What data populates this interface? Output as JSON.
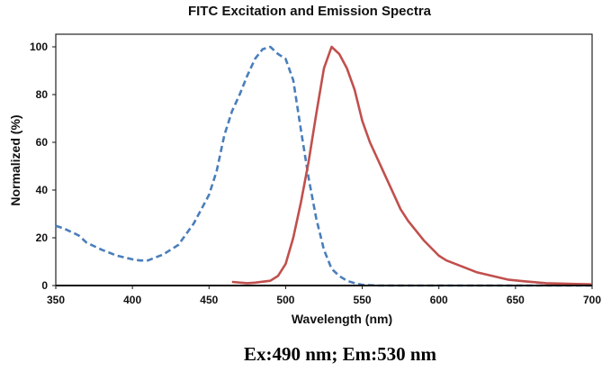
{
  "chart_data": {
    "type": "line",
    "title": "FITC Excitation and Emission Spectra",
    "xlabel": "Wavelength (nm)",
    "ylabel": "Normalized (%)",
    "xlim": [
      350,
      700
    ],
    "ylim": [
      0,
      100
    ],
    "xticks": [
      350,
      400,
      450,
      500,
      550,
      600,
      650,
      700
    ],
    "yticks": [
      0,
      20,
      40,
      60,
      80,
      100
    ],
    "grid": false,
    "legend": "none",
    "series": [
      {
        "name": "Excitation",
        "color": "#4a7ebb",
        "style": "dashed",
        "x": [
          350,
          355,
          365,
          370,
          380,
          390,
          400,
          405,
          410,
          420,
          430,
          440,
          450,
          455,
          460,
          465,
          470,
          475,
          480,
          485,
          490,
          495,
          500,
          505,
          510,
          515,
          520,
          525,
          530,
          535,
          540,
          545,
          550,
          560,
          600,
          650,
          700
        ],
        "y": [
          25,
          24,
          21,
          18,
          15,
          12.5,
          11,
          10.5,
          10.5,
          13,
          17,
          26,
          38,
          48,
          63,
          73,
          80,
          88,
          95,
          99,
          100,
          97,
          95,
          86,
          65,
          45,
          28,
          15,
          7,
          4,
          2,
          1,
          0.3,
          0,
          0,
          0,
          0
        ]
      },
      {
        "name": "Emission",
        "color": "#c0504d",
        "style": "solid",
        "x": [
          465,
          475,
          480,
          490,
          495,
          500,
          505,
          510,
          515,
          520,
          525,
          530,
          535,
          540,
          545,
          550,
          555,
          560,
          565,
          570,
          575,
          580,
          590,
          600,
          605,
          615,
          625,
          635,
          645,
          655,
          670,
          700
        ],
        "y": [
          1.5,
          1,
          1.2,
          2,
          4,
          9,
          20,
          35,
          52,
          72,
          91,
          100,
          97,
          91,
          82,
          69,
          60,
          53,
          46,
          39,
          32,
          27,
          19,
          12.5,
          10.5,
          8,
          5.5,
          4,
          2.5,
          1.8,
          1,
          0.5
        ]
      }
    ]
  },
  "footer": "Ex:490 nm; Em:530 nm"
}
